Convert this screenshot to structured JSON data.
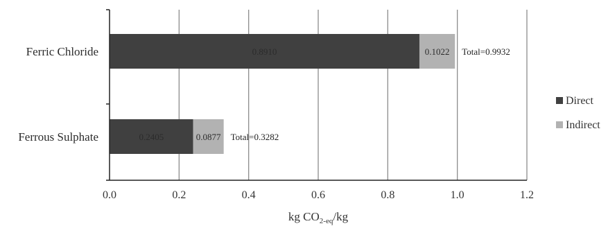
{
  "chart_data": {
    "type": "bar",
    "orientation": "horizontal",
    "stacked": true,
    "categories": [
      "Ferric Chloride",
      "Ferrous Sulphate"
    ],
    "series": [
      {
        "name": "Direct",
        "values": [
          0.891,
          0.2405
        ],
        "labels": [
          "0.8910",
          "0.2405"
        ],
        "color": "#404040"
      },
      {
        "name": "Indirect",
        "values": [
          0.1022,
          0.0877
        ],
        "labels": [
          "0.1022",
          "0.0877"
        ],
        "color": "#b2b2b2"
      }
    ],
    "totals": [
      "Total=0.9932",
      "Total=0.3282"
    ],
    "xlabel": {
      "main": "kg CO",
      "sub": "2-eq",
      "tail": "/kg"
    },
    "xlim": [
      0,
      1.2
    ],
    "xticks": [
      0,
      0.2,
      0.4,
      0.6,
      0.8,
      1.0,
      1.2
    ],
    "xtick_labels": [
      "0.0",
      "0.2",
      "0.4",
      "0.6",
      "0.8",
      "1.0",
      "1.2"
    ],
    "grid": true,
    "legend_position": "right"
  }
}
